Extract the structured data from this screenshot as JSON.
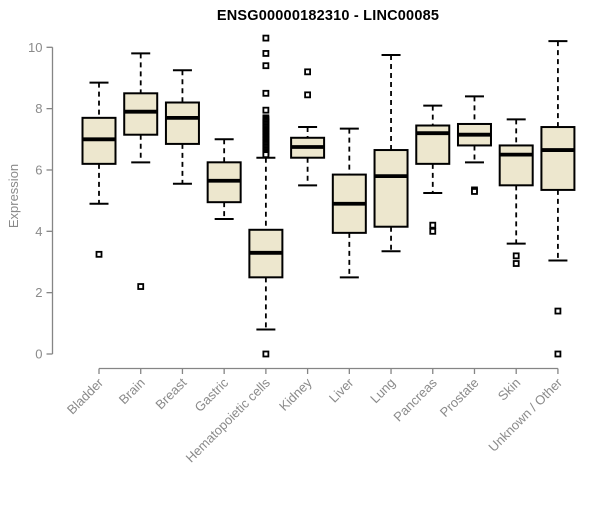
{
  "title": "ENSG00000182310 - LINC00085",
  "colors": {
    "box_fill": "#EDE7CE",
    "box_stroke": "#000000",
    "median_stroke": "#000000",
    "axis_line": "#858585",
    "axis_text": "#8a8a8a",
    "title_text": "#000000",
    "background": "#ffffff"
  },
  "chart_data": {
    "type": "boxplot",
    "title": "ENSG00000182310 - LINC00085",
    "xlabel": "",
    "ylabel": "Expression",
    "ylim": [
      0,
      10
    ],
    "yticks": [
      0,
      2,
      4,
      6,
      8,
      10
    ],
    "grid": false,
    "legend": "none",
    "categories": [
      "Bladder",
      "Brain",
      "Breast",
      "Gastric",
      "Hematopoietic cells",
      "Kidney",
      "Liver",
      "Lung",
      "Pancreas",
      "Prostate",
      "Skin",
      "Unknown / Other"
    ],
    "series": [
      {
        "category": "Bladder",
        "whisker_low": 4.9,
        "q1": 6.2,
        "median": 7.0,
        "q3": 7.7,
        "whisker_high": 8.85,
        "outliers": [
          3.25
        ]
      },
      {
        "category": "Brain",
        "whisker_low": 6.25,
        "q1": 7.15,
        "median": 7.9,
        "q3": 8.5,
        "whisker_high": 9.8,
        "outliers": [
          2.2
        ]
      },
      {
        "category": "Breast",
        "whisker_low": 5.55,
        "q1": 6.85,
        "median": 7.7,
        "q3": 8.2,
        "whisker_high": 9.25,
        "outliers": []
      },
      {
        "category": "Gastric",
        "whisker_low": 4.4,
        "q1": 4.95,
        "median": 5.65,
        "q3": 6.25,
        "whisker_high": 7.0,
        "outliers": []
      },
      {
        "category": "Hematopoietic cells",
        "whisker_low": 0.8,
        "q1": 2.5,
        "median": 3.3,
        "q3": 4.05,
        "whisker_high": 6.4,
        "outliers": [
          10.3,
          9.8,
          9.4,
          8.5,
          7.95,
          7.7,
          7.65,
          7.6,
          7.55,
          7.5,
          7.45,
          7.4,
          7.35,
          7.3,
          7.25,
          7.2,
          7.15,
          7.1,
          7.05,
          7.0,
          6.95,
          6.9,
          6.85,
          6.8,
          6.75,
          6.7,
          6.65,
          6.6,
          6.55,
          6.5,
          0.0
        ]
      },
      {
        "category": "Kidney",
        "whisker_low": 5.5,
        "q1": 6.4,
        "median": 6.75,
        "q3": 7.05,
        "whisker_high": 7.4,
        "outliers": [
          9.2,
          8.45
        ]
      },
      {
        "category": "Liver",
        "whisker_low": 2.5,
        "q1": 3.95,
        "median": 4.9,
        "q3": 5.85,
        "whisker_high": 7.35,
        "outliers": []
      },
      {
        "category": "Lung",
        "whisker_low": 3.35,
        "q1": 4.15,
        "median": 5.8,
        "q3": 6.65,
        "whisker_high": 9.75,
        "outliers": []
      },
      {
        "category": "Pancreas",
        "whisker_low": 5.25,
        "q1": 6.2,
        "median": 7.2,
        "q3": 7.45,
        "whisker_high": 8.1,
        "outliers": [
          4.2,
          4.0
        ]
      },
      {
        "category": "Prostate",
        "whisker_low": 6.25,
        "q1": 6.8,
        "median": 7.15,
        "q3": 7.5,
        "whisker_high": 8.4,
        "outliers": [
          5.35,
          5.3
        ]
      },
      {
        "category": "Skin",
        "whisker_low": 3.6,
        "q1": 5.5,
        "median": 6.5,
        "q3": 6.8,
        "whisker_high": 7.65,
        "outliers": [
          3.2,
          2.95
        ]
      },
      {
        "category": "Unknown / Other",
        "whisker_low": 3.05,
        "q1": 5.35,
        "median": 6.65,
        "q3": 7.4,
        "whisker_high": 10.2,
        "outliers": [
          1.4,
          0.0
        ]
      }
    ]
  }
}
